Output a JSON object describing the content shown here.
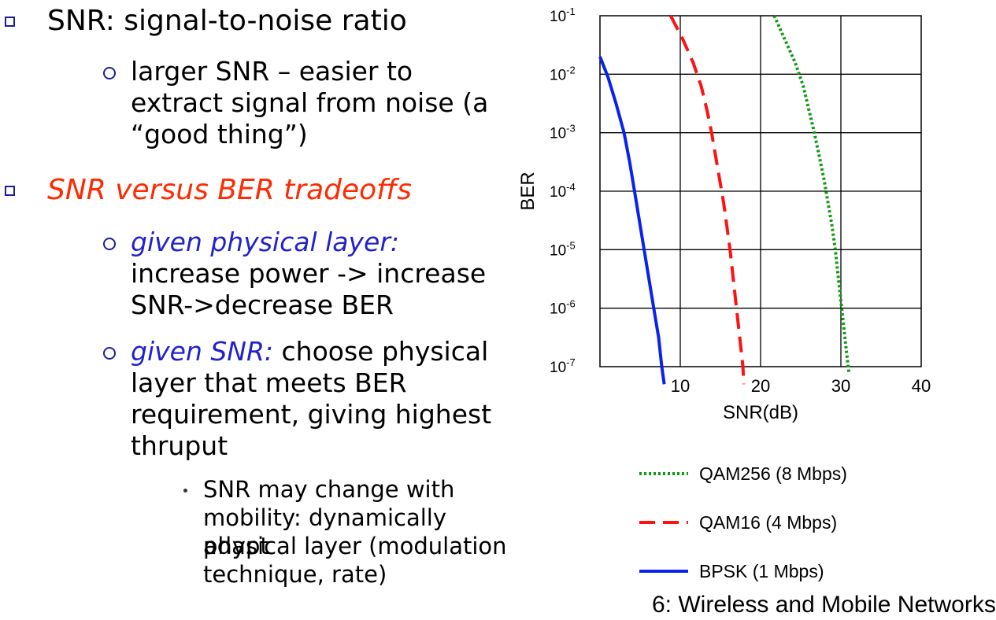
{
  "bullets": {
    "item1": "SNR: signal-to-noise ratio",
    "item1_sub1": [
      "larger SNR – easier to",
      "extract signal from noise (a",
      "“good thing”)"
    ],
    "item2": "SNR versus BER tradeoffs",
    "item2_sub1_italic": "given physical layer:",
    "item2_sub1_lines": [
      "increase power -> increase",
      "SNR->decrease BER"
    ],
    "item2_sub2_italic": "given SNR:",
    "item2_sub2_rest": " choose physical",
    "item2_sub2_lines": [
      "layer that meets BER",
      "requirement, giving highest",
      "thruput"
    ],
    "item2_sub2_sub1_lines": [
      "SNR may change with",
      "mobility: dynamically adapt",
      "physical layer (modulation",
      "technique, rate)"
    ]
  },
  "colors": {
    "bullet_square": "#1d1d99",
    "emphasis_red": "#ff2a00",
    "emphasis_blue": "#2222cc",
    "qam256": "#119911",
    "qam16": "#ff1111",
    "bpsk": "#0a22ee"
  },
  "footer_fragment": "6: Wireless and Mobile Networks",
  "chart_data": {
    "type": "line",
    "title": "",
    "xlabel": "SNR(dB)",
    "ylabel": "BER",
    "xlim": [
      0,
      40
    ],
    "x_ticks": [
      10,
      20,
      30,
      40
    ],
    "y_scale": "log",
    "ylim": [
      1e-07,
      0.1
    ],
    "y_ticks": [
      -1,
      -2,
      -3,
      -4,
      -5,
      -6,
      -7
    ],
    "grid": true,
    "legend_position": "below",
    "series": [
      {
        "name": "QAM256 (8 Mbps)",
        "style": "dotted",
        "color": "#119911",
        "points": [
          [
            21.7,
            -1.0
          ],
          [
            23.0,
            -1.4
          ],
          [
            24.3,
            -1.8
          ],
          [
            25.3,
            -2.2
          ],
          [
            26.0,
            -2.6
          ],
          [
            26.7,
            -3.0
          ],
          [
            27.3,
            -3.4
          ],
          [
            27.9,
            -3.8
          ],
          [
            28.4,
            -4.2
          ],
          [
            28.9,
            -4.6
          ],
          [
            29.3,
            -5.0
          ],
          [
            29.7,
            -5.5
          ],
          [
            30.1,
            -6.0
          ],
          [
            30.5,
            -6.5
          ],
          [
            30.9,
            -7.0
          ],
          [
            31.0,
            -7.1
          ]
        ]
      },
      {
        "name": "QAM16 (4 Mbps)",
        "style": "dashed",
        "color": "#ff1111",
        "points": [
          [
            8.8,
            -1.0
          ],
          [
            10.3,
            -1.4
          ],
          [
            11.6,
            -1.8
          ],
          [
            12.6,
            -2.2
          ],
          [
            13.3,
            -2.6
          ],
          [
            13.9,
            -3.0
          ],
          [
            14.4,
            -3.4
          ],
          [
            14.9,
            -3.8
          ],
          [
            15.4,
            -4.2
          ],
          [
            15.8,
            -4.6
          ],
          [
            16.2,
            -5.0
          ],
          [
            16.6,
            -5.5
          ],
          [
            17.0,
            -6.0
          ],
          [
            17.4,
            -6.5
          ],
          [
            17.8,
            -7.0
          ],
          [
            17.9,
            -7.3
          ]
        ]
      },
      {
        "name": "BPSK (1 Mbps)",
        "style": "solid",
        "color": "#0a22ee",
        "points": [
          [
            0.0,
            -1.7
          ],
          [
            1.0,
            -2.05
          ],
          [
            2.0,
            -2.5
          ],
          [
            3.0,
            -3.0
          ],
          [
            3.7,
            -3.5
          ],
          [
            4.3,
            -4.0
          ],
          [
            4.9,
            -4.5
          ],
          [
            5.5,
            -5.0
          ],
          [
            6.1,
            -5.5
          ],
          [
            6.7,
            -6.0
          ],
          [
            7.3,
            -6.5
          ],
          [
            7.7,
            -7.0
          ],
          [
            8.0,
            -7.3
          ]
        ]
      }
    ]
  }
}
